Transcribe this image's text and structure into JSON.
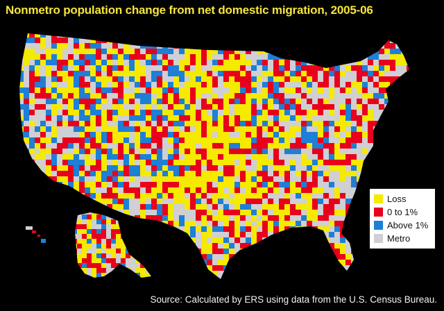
{
  "title": "Nonmetro population change from net domestic migration, 2005-06",
  "legend": {
    "items": [
      {
        "label": "Loss",
        "color": "#f5ea00"
      },
      {
        "label": "0 to 1%",
        "color": "#e8001c"
      },
      {
        "label": "Above 1%",
        "color": "#1e7fd6"
      },
      {
        "label": "Metro",
        "color": "#cfcfd4"
      }
    ]
  },
  "source": "Source:  Calculated by ERS using data from the U.S. Census Bureau.",
  "colors": {
    "background": "#000000",
    "title": "#f7e53b",
    "loss": "#f5ea00",
    "gain_0_1": "#e8001c",
    "gain_above_1": "#1e7fd6",
    "metro": "#cfcfd4"
  }
}
